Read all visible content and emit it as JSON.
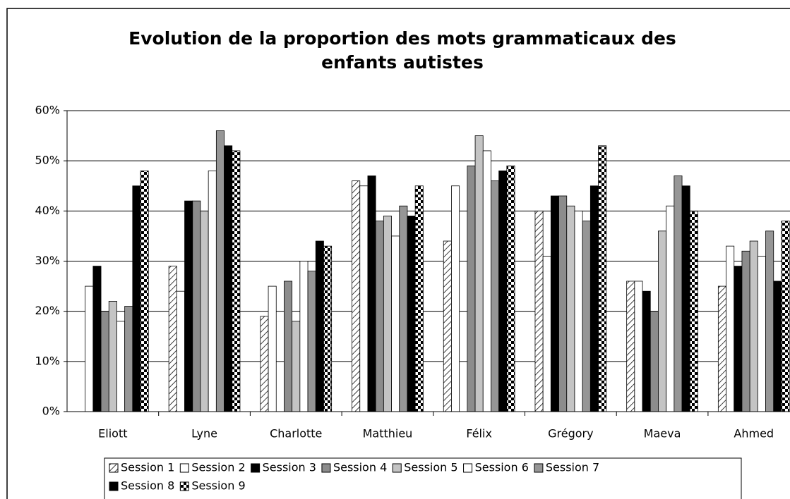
{
  "chart_data": {
    "type": "bar",
    "title": "Evolution de la proportion des mots grammaticaux des enfants autistes",
    "categories": [
      "Eliott",
      "Lyne",
      "Charlotte",
      "Matthieu",
      "Félix",
      "Grégory",
      "Maeva",
      "Ahmed"
    ],
    "series": [
      {
        "name": "Session 1",
        "color": "#ffffff",
        "pattern": "hatch",
        "values": [
          null,
          29,
          19,
          46,
          34,
          40,
          26,
          25
        ]
      },
      {
        "name": "Session 2",
        "color": "#ffffff",
        "values": [
          25,
          24,
          25,
          45,
          45,
          31,
          26,
          33
        ]
      },
      {
        "name": "Session 3",
        "color": "#000000",
        "values": [
          29,
          42,
          null,
          47,
          null,
          43,
          24,
          29
        ]
      },
      {
        "name": "Session 4",
        "color": "#8c8c8c",
        "values": [
          20,
          42,
          26,
          38,
          49,
          43,
          20,
          32
        ]
      },
      {
        "name": "Session 5",
        "color": "#c4c4c4",
        "values": [
          22,
          40,
          18,
          39,
          55,
          41,
          36,
          34
        ]
      },
      {
        "name": "Session 6",
        "color": "#ffffff",
        "values": [
          18,
          48,
          30,
          35,
          52,
          40,
          41,
          31
        ]
      },
      {
        "name": "Session 7",
        "color": "#969696",
        "values": [
          21,
          56,
          28,
          41,
          46,
          38,
          47,
          36
        ]
      },
      {
        "name": "Session 8",
        "color": "#000000",
        "values": [
          45,
          53,
          34,
          39,
          48,
          45,
          45,
          26
        ]
      },
      {
        "name": "Session 9",
        "color": "#000000",
        "pattern": "checker",
        "values": [
          48,
          52,
          33,
          45,
          49,
          53,
          40,
          38
        ]
      }
    ],
    "ylim": [
      0,
      60
    ],
    "yticks": [
      {
        "value": 0,
        "label": "0%"
      },
      {
        "value": 10,
        "label": "10%"
      },
      {
        "value": 20,
        "label": "20%"
      },
      {
        "value": 30,
        "label": "30%"
      },
      {
        "value": 40,
        "label": "40%"
      },
      {
        "value": 50,
        "label": "50%"
      },
      {
        "value": 60,
        "label": "60%"
      }
    ],
    "grid": true,
    "legend": "bottom"
  }
}
